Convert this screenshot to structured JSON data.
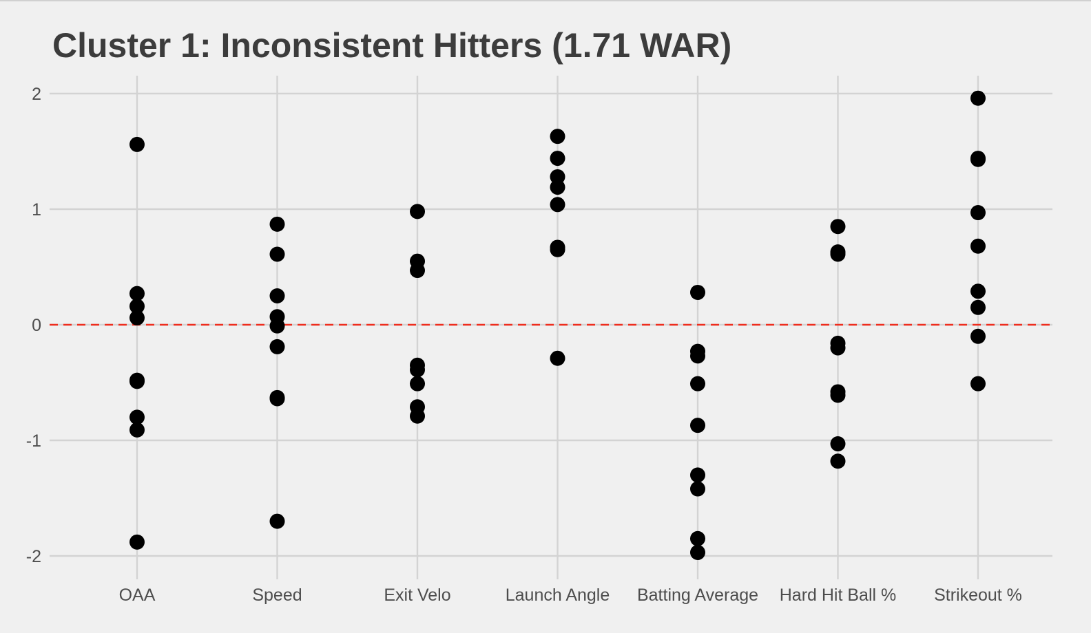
{
  "chart_data": {
    "type": "scatter",
    "title": "Cluster 1: Inconsistent Hitters (1.71 WAR)",
    "xlabel": "",
    "ylabel": "",
    "categories": [
      "OAA",
      "Speed",
      "Exit Velo",
      "Launch Angle",
      "Batting Average",
      "Hard Hit Ball %",
      "Strikeout %"
    ],
    "ylim": [
      -2.2,
      2.1
    ],
    "yticks": [
      2,
      1,
      0,
      -1,
      -2
    ],
    "ytick_labels": [
      "2",
      "1",
      "0",
      "-1",
      "-2"
    ],
    "grid": true,
    "reference_line": {
      "y": 0,
      "style": "dashed",
      "color": "#ef2d1e"
    },
    "point_color": "#000000",
    "values": [
      [
        1.56,
        0.27,
        0.16,
        0.06,
        -0.48,
        -0.49,
        -0.8,
        -0.91,
        -1.88
      ],
      [
        0.87,
        0.61,
        0.25,
        0.07,
        -0.01,
        -0.19,
        -0.63,
        -0.64,
        -1.7
      ],
      [
        0.98,
        0.55,
        0.47,
        -0.35,
        -0.39,
        -0.51,
        -0.71,
        -0.79
      ],
      [
        1.63,
        1.44,
        1.28,
        1.19,
        1.04,
        0.67,
        0.65,
        -0.29
      ],
      [
        0.28,
        -0.23,
        -0.27,
        -0.51,
        -0.87,
        -1.3,
        -1.42,
        -1.85,
        -1.97
      ],
      [
        0.85,
        0.63,
        0.61,
        -0.16,
        -0.2,
        -0.58,
        -0.61,
        -1.03,
        -1.18
      ],
      [
        1.96,
        1.44,
        1.43,
        0.97,
        0.68,
        0.29,
        0.15,
        -0.1,
        -0.51
      ]
    ]
  }
}
